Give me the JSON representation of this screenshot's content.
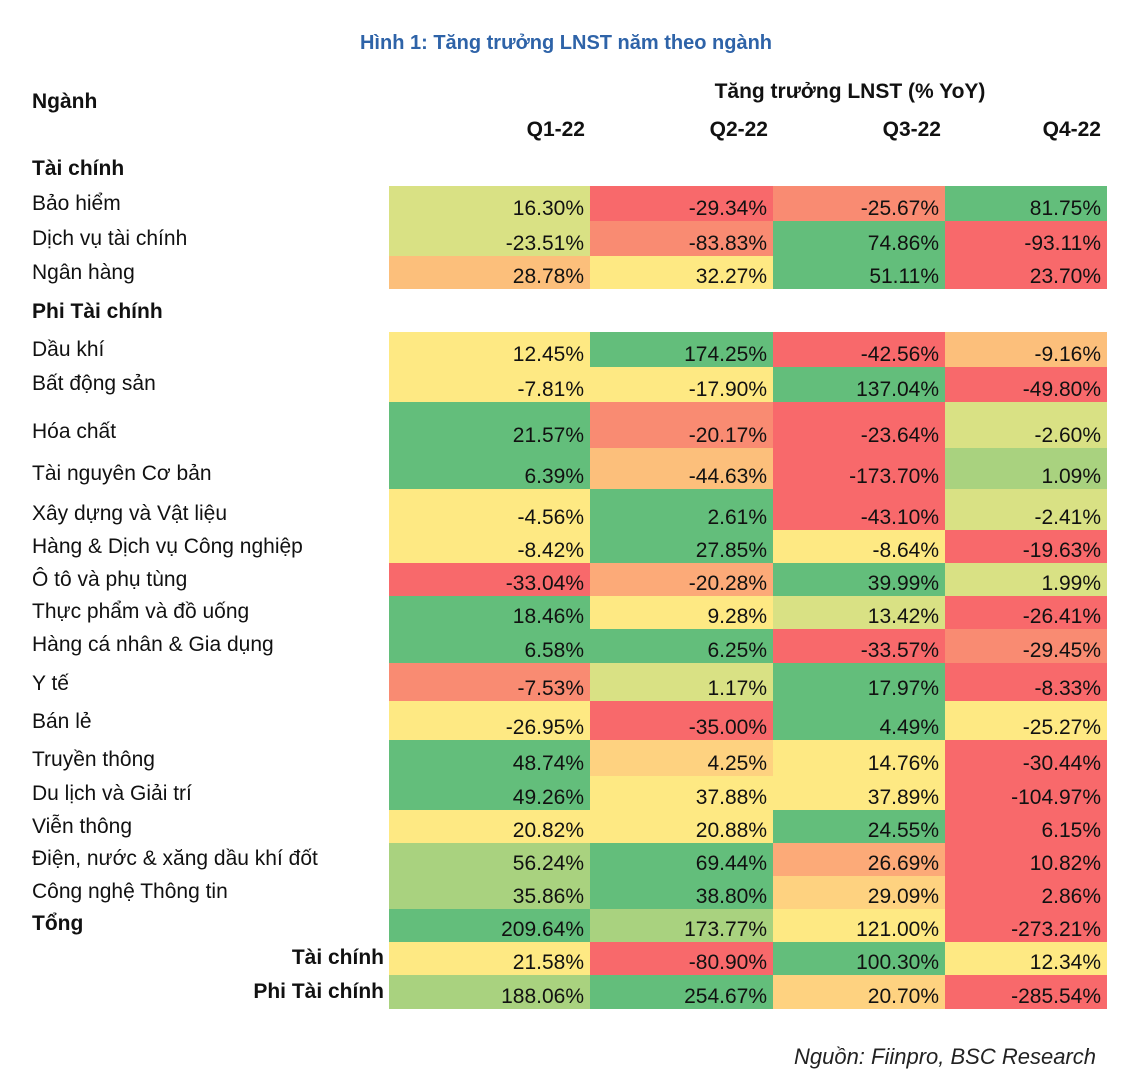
{
  "title": "Hình 1: Tăng trưởng LNST năm theo ngành",
  "header": {
    "sector_label": "Ngành",
    "group_label": "Tăng trưởng LNST (% YoY)",
    "quarters": [
      "Q1-22",
      "Q2-22",
      "Q3-22",
      "Q4-22"
    ]
  },
  "colors": {
    "green": "#63be7b",
    "green_light": "#a9d27f",
    "yellow_green": "#d9e184",
    "yellow": "#fee983",
    "orange_light": "#fcbf7b",
    "orange": "#f98b72",
    "red": "#f8696b"
  },
  "categories": {
    "financial": "Tài chính",
    "non_financial": "Phi Tài chính"
  },
  "rows": [
    {
      "label": "Bảo hiểm",
      "values": [
        "16.30%",
        "-29.34%",
        "-25.67%",
        "81.75%"
      ]
    },
    {
      "label": "Dịch vụ tài chính",
      "values": [
        "-23.51%",
        "-83.83%",
        "74.86%",
        "-93.11%"
      ]
    },
    {
      "label": "Ngân hàng",
      "values": [
        "28.78%",
        "32.27%",
        "51.11%",
        "23.70%"
      ]
    },
    {
      "label": "Dầu khí",
      "values": [
        "12.45%",
        "174.25%",
        "-42.56%",
        "-9.16%"
      ]
    },
    {
      "label": "Bất động sản",
      "values": [
        "-7.81%",
        "-17.90%",
        "137.04%",
        "-49.80%"
      ]
    },
    {
      "label": "Hóa chất",
      "values": [
        "21.57%",
        "-20.17%",
        "-23.64%",
        "-2.60%"
      ]
    },
    {
      "label": "Tài nguyên Cơ bản",
      "values": [
        "6.39%",
        "-44.63%",
        "-173.70%",
        "1.09%"
      ]
    },
    {
      "label": "Xây dựng và Vật liệu",
      "values": [
        "-4.56%",
        "2.61%",
        "-43.10%",
        "-2.41%"
      ]
    },
    {
      "label": "Hàng & Dịch vụ Công nghiệp",
      "values": [
        "-8.42%",
        "27.85%",
        "-8.64%",
        "-19.63%"
      ]
    },
    {
      "label": "Ô tô và phụ tùng",
      "values": [
        "-33.04%",
        "-20.28%",
        "39.99%",
        "1.99%"
      ]
    },
    {
      "label": "Thực phẩm và đồ uống",
      "values": [
        "18.46%",
        "9.28%",
        "13.42%",
        "-26.41%"
      ]
    },
    {
      "label": "Hàng cá nhân & Gia dụng",
      "values": [
        "6.58%",
        "6.25%",
        "-33.57%",
        "-29.45%"
      ]
    },
    {
      "label": "Y tế",
      "values": [
        "-7.53%",
        "1.17%",
        "17.97%",
        "-8.33%"
      ]
    },
    {
      "label": "Bán lẻ",
      "values": [
        "-26.95%",
        "-35.00%",
        "4.49%",
        "-25.27%"
      ]
    },
    {
      "label": "Truyền thông",
      "values": [
        "48.74%",
        "4.25%",
        "14.76%",
        "-30.44%"
      ]
    },
    {
      "label": "Du lịch và Giải trí",
      "values": [
        "49.26%",
        "37.88%",
        "37.89%",
        "-104.97%"
      ]
    },
    {
      "label": "Viễn thông",
      "values": [
        "20.82%",
        "20.88%",
        "24.55%",
        "6.15%"
      ]
    },
    {
      "label": "Điện, nước & xăng dầu khí đốt",
      "values": [
        "56.24%",
        "69.44%",
        "26.69%",
        "10.82%"
      ]
    },
    {
      "label": "Công nghệ Thông tin",
      "values": [
        "35.86%",
        "38.80%",
        "29.09%",
        "2.86%"
      ]
    },
    {
      "label": "Tổng",
      "values": [
        "209.64%",
        "173.77%",
        "121.00%",
        "-273.21%"
      ]
    },
    {
      "label": "Tài chính",
      "values": [
        "21.58%",
        "-80.90%",
        "100.30%",
        "12.34%"
      ]
    },
    {
      "label": "Phi Tài chính",
      "values": [
        "188.06%",
        "254.67%",
        "20.70%",
        "-285.54%"
      ]
    }
  ],
  "source": "Nguồn: Fiinpro, BSC Research"
}
